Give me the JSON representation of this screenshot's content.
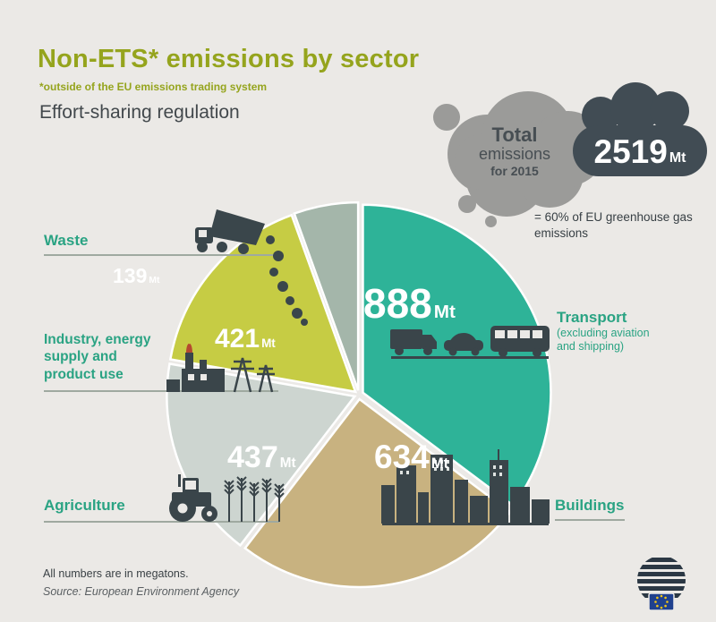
{
  "header": {
    "title": "Non-ETS* emissions by sector",
    "footnote": "*outside of the EU emissions trading system",
    "subtitle": "Effort-sharing regulation"
  },
  "total_badge": {
    "label_top": "Total",
    "label_mid": "emissions",
    "label_bottom": "for 2015",
    "value": "2519",
    "unit": "Mt",
    "note": "= 60% of EU greenhouse gas emissions"
  },
  "chart_data": {
    "type": "pie",
    "title": "Non-ETS emissions by sector",
    "unit": "Mt",
    "total": 2519,
    "start_angle_deg": 0,
    "direction": "clockwise",
    "legend_position": "around",
    "slices": [
      {
        "id": "transport",
        "label": "Transport",
        "sublabel": "(excluding aviation and shipping)",
        "value": 888,
        "color": "#2eb398"
      },
      {
        "id": "buildings",
        "label": "Buildings",
        "value": 634,
        "color": "#c8b280"
      },
      {
        "id": "agriculture",
        "label": "Agriculture",
        "value": 437,
        "color": "#cdd5d0"
      },
      {
        "id": "industry",
        "label": "Industry, energy supply and product use",
        "value": 421,
        "color": "#c6cc44"
      },
      {
        "id": "waste",
        "label": "Waste",
        "value": 139,
        "color": "#a4b6aa"
      }
    ]
  },
  "footer": {
    "note": "All numbers are in megatons.",
    "source": "Source: European Environment Agency"
  },
  "colors": {
    "title_green": "#95a41d",
    "label_green": "#2aa383",
    "dark": "#3c474c",
    "badge_dark": "#414c54",
    "cloud_gray": "#9b9b99",
    "background": "#ebe9e6"
  }
}
